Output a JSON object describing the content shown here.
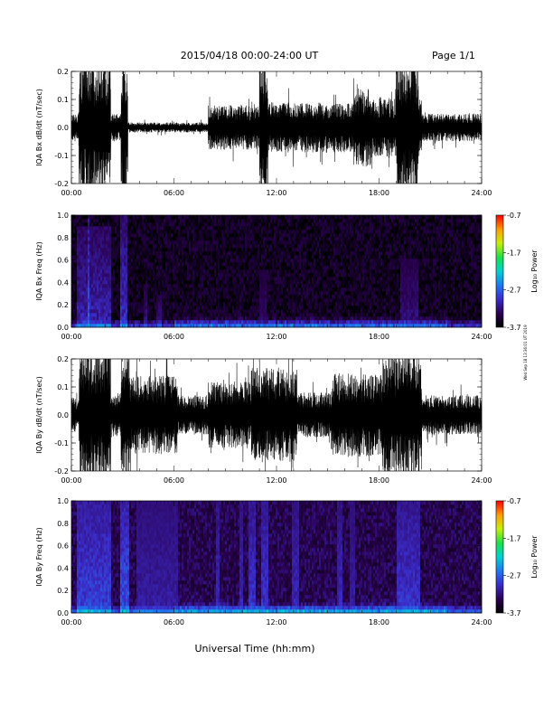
{
  "header": {
    "title": "2015/04/18  00:00-24:00 UT",
    "page": "Page 1/1"
  },
  "side_note": "Wed Sep 18 13:36:01 UT 2019",
  "footer": {
    "xlabel": "Universal Time (hh:mm)"
  },
  "time_ticks": [
    "00:00",
    "06:00",
    "12:00",
    "18:00",
    "24:00"
  ],
  "chart_data": [
    {
      "type": "line",
      "name": "bx-waveform",
      "ylabel": "IQA Bx dB/dt (nT/sec)",
      "x_range_hours": [
        0,
        24
      ],
      "ylim": [
        -0.2,
        0.2
      ],
      "yticks": [
        -0.2,
        -0.1,
        0.0,
        0.1,
        0.2
      ],
      "ytick_labels": [
        "-0.2",
        "-0.1",
        "0.0",
        "0.1",
        "0.2"
      ],
      "background_amplitude": 0.018,
      "activity": [
        {
          "t": [
            0.0,
            0.45
          ],
          "amp": 0.05
        },
        {
          "t": [
            0.45,
            2.3
          ],
          "amp": 0.25
        },
        {
          "t": [
            2.3,
            2.9
          ],
          "amp": 0.05
        },
        {
          "t": [
            2.9,
            3.3
          ],
          "amp": 0.25
        },
        {
          "t": [
            8.0,
            11.0
          ],
          "amp": 0.08
        },
        {
          "t": [
            11.0,
            11.5
          ],
          "amp": 0.25
        },
        {
          "t": [
            11.5,
            16.5
          ],
          "amp": 0.09
        },
        {
          "t": [
            16.5,
            17.5
          ],
          "amp": 0.14
        },
        {
          "t": [
            17.5,
            20.5
          ],
          "amp": 0.11
        },
        {
          "t": [
            19.0,
            20.3
          ],
          "amp": 0.25
        },
        {
          "t": [
            20.5,
            24.0
          ],
          "amp": 0.05
        }
      ]
    },
    {
      "type": "heatmap",
      "name": "bx-spectrogram",
      "ylabel": "IQA Bx Freq (Hz)",
      "x_range_hours": [
        0,
        24
      ],
      "ylim": [
        0,
        1.0
      ],
      "yticks": [
        0.0,
        0.2,
        0.4,
        0.6,
        0.8,
        1.0
      ],
      "ytick_labels": [
        "0.0",
        "0.2",
        "0.4",
        "0.6",
        "0.8",
        "1.0"
      ],
      "colorbar": {
        "label": "Log₁₀ Power",
        "range": [
          -3.7,
          -0.7
        ],
        "ticks": [
          -0.7,
          -1.7,
          -2.7,
          -3.7
        ],
        "tick_labels": [
          "-0.7",
          "-1.7",
          "-2.7",
          "-3.7"
        ]
      },
      "base_power": -3.55,
      "bands": [
        {
          "t": [
            0.3,
            2.3
          ],
          "p": -2.9,
          "fmax": 0.9
        },
        {
          "t": [
            2.9,
            3.3
          ],
          "p": -2.8,
          "fmax": 1.0
        },
        {
          "t": [
            1.0,
            1.1
          ],
          "p": -2.6,
          "fmax": 1.0
        },
        {
          "t": [
            4.2,
            4.4
          ],
          "p": -3.1,
          "fmax": 0.4
        },
        {
          "t": [
            5.0,
            5.3
          ],
          "p": -3.1,
          "fmax": 0.3
        },
        {
          "t": [
            11.0,
            11.4
          ],
          "p": -3.2,
          "fmax": 0.5
        },
        {
          "t": [
            19.2,
            20.3
          ],
          "p": -3.1,
          "fmax": 0.6
        }
      ]
    },
    {
      "type": "line",
      "name": "by-waveform",
      "ylabel": "IQA By dB/dt (nT/sec)",
      "x_range_hours": [
        0,
        24
      ],
      "ylim": [
        -0.2,
        0.2
      ],
      "yticks": [
        -0.2,
        -0.1,
        0.0,
        0.1,
        0.2
      ],
      "ytick_labels": [
        "-0.2",
        "-0.1",
        "0.0",
        "0.1",
        "0.2"
      ],
      "background_amplitude": 0.02,
      "activity": [
        {
          "t": [
            0.0,
            0.45
          ],
          "amp": 0.06
        },
        {
          "t": [
            0.45,
            2.3
          ],
          "amp": 0.25
        },
        {
          "t": [
            2.3,
            2.9
          ],
          "amp": 0.08
        },
        {
          "t": [
            2.9,
            3.4
          ],
          "amp": 0.25
        },
        {
          "t": [
            3.4,
            6.2
          ],
          "amp": 0.14
        },
        {
          "t": [
            6.2,
            8.0
          ],
          "amp": 0.07
        },
        {
          "t": [
            8.0,
            10.5
          ],
          "amp": 0.12
        },
        {
          "t": [
            10.5,
            13.2
          ],
          "amp": 0.17
        },
        {
          "t": [
            13.2,
            15.2
          ],
          "amp": 0.08
        },
        {
          "t": [
            15.2,
            18.2
          ],
          "amp": 0.15
        },
        {
          "t": [
            18.2,
            20.5
          ],
          "amp": 0.22
        },
        {
          "t": [
            19.5,
            20.0
          ],
          "amp": 0.25
        },
        {
          "t": [
            20.5,
            24.0
          ],
          "amp": 0.07
        }
      ]
    },
    {
      "type": "heatmap",
      "name": "by-spectrogram",
      "ylabel": "IQA By Freq (Hz)",
      "x_range_hours": [
        0,
        24
      ],
      "ylim": [
        0,
        1.0
      ],
      "yticks": [
        0.0,
        0.2,
        0.4,
        0.6,
        0.8,
        1.0
      ],
      "ytick_labels": [
        "0.0",
        "0.2",
        "0.4",
        "0.6",
        "0.8",
        "1.0"
      ],
      "colorbar": {
        "label": "Log₁₀ Power",
        "range": [
          -3.7,
          -0.7
        ],
        "ticks": [
          -0.7,
          -1.7,
          -2.7,
          -3.7
        ],
        "tick_labels": [
          "-0.7",
          "-1.7",
          "-2.7",
          "-3.7"
        ]
      },
      "base_power": -3.35,
      "bands": [
        {
          "t": [
            0.3,
            2.3
          ],
          "p": -2.7,
          "fmax": 1.0
        },
        {
          "t": [
            2.9,
            3.4
          ],
          "p": -2.6,
          "fmax": 1.0
        },
        {
          "t": [
            3.8,
            6.2
          ],
          "p": -3.0,
          "fmax": 1.0
        },
        {
          "t": [
            8.5,
            8.7
          ],
          "p": -2.9,
          "fmax": 1.0
        },
        {
          "t": [
            9.8,
            10.0
          ],
          "p": -2.9,
          "fmax": 1.0
        },
        {
          "t": [
            10.4,
            10.8
          ],
          "p": -2.8,
          "fmax": 1.0
        },
        {
          "t": [
            11.1,
            11.5
          ],
          "p": -2.8,
          "fmax": 1.0
        },
        {
          "t": [
            12.9,
            13.3
          ],
          "p": -2.9,
          "fmax": 1.0
        },
        {
          "t": [
            15.5,
            15.9
          ],
          "p": -2.9,
          "fmax": 1.0
        },
        {
          "t": [
            16.3,
            16.6
          ],
          "p": -3.0,
          "fmax": 1.0
        },
        {
          "t": [
            19.0,
            20.4
          ],
          "p": -2.8,
          "fmax": 1.0
        }
      ]
    }
  ]
}
